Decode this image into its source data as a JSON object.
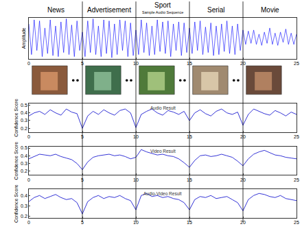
{
  "chart_data": [
    {
      "type": "line",
      "ylabel": "Amplitude",
      "annotations": [
        "News",
        "Advertisement",
        "Sport",
        "Serial",
        "Movie"
      ],
      "subtitle": "Sample Audio Sequence",
      "boundaries": [
        5,
        10,
        15,
        20
      ],
      "color": "#0000ff",
      "grid": false,
      "tick_labels": "x",
      "xlim": [
        0,
        25
      ],
      "xticks": [
        0,
        5,
        10,
        15,
        20,
        25
      ],
      "ylim": [
        -1,
        1
      ],
      "x": [
        0,
        0.25,
        0.5,
        0.75,
        1,
        1.25,
        1.5,
        1.75,
        2,
        2.25,
        2.5,
        2.75,
        3,
        3.25,
        3.5,
        3.75,
        4,
        4.25,
        4.5,
        4.75,
        5,
        5.25,
        5.5,
        5.75,
        6,
        6.25,
        6.5,
        6.75,
        7,
        7.25,
        7.5,
        7.75,
        8,
        8.25,
        8.5,
        8.75,
        9,
        9.25,
        9.5,
        9.75,
        10,
        10.25,
        10.5,
        10.75,
        11,
        11.25,
        11.5,
        11.75,
        12,
        12.25,
        12.5,
        12.75,
        13,
        13.25,
        13.5,
        13.75,
        14,
        14.25,
        14.5,
        14.75,
        15,
        15.25,
        15.5,
        15.75,
        16,
        16.25,
        16.5,
        16.75,
        17,
        17.25,
        17.5,
        17.75,
        18,
        18.25,
        18.5,
        18.75,
        19,
        19.25,
        19.5,
        19.75,
        20,
        20.25,
        20.5,
        20.75,
        21,
        21.25,
        21.5,
        21.75,
        22,
        22.25,
        22.5,
        22.75,
        23,
        23.25,
        23.5,
        23.75,
        24,
        24.25,
        24.5,
        24.75,
        25
      ],
      "values": [
        0.7,
        -0.8,
        0.9,
        -0.6,
        0.85,
        -0.9,
        0.5,
        -0.75,
        0.9,
        -0.85,
        0.6,
        -0.9,
        0.8,
        -0.7,
        0.95,
        -0.8,
        0.65,
        -0.9,
        0.85,
        -0.6,
        0.3,
        -0.9,
        0.85,
        -0.7,
        0.95,
        -0.8,
        0.6,
        -0.9,
        0.9,
        -0.75,
        0.85,
        -0.95,
        0.7,
        -0.8,
        0.9,
        -0.6,
        0.85,
        -0.9,
        0.75,
        -0.85,
        0.4,
        -0.8,
        0.9,
        -0.7,
        0.75,
        -0.85,
        0.6,
        -0.8,
        0.9,
        -0.65,
        0.8,
        -0.75,
        0.85,
        -0.9,
        0.7,
        -0.6,
        0.8,
        -0.85,
        0.75,
        -0.7,
        0.5,
        -0.75,
        0.8,
        -0.6,
        0.85,
        -0.8,
        0.55,
        -0.7,
        0.75,
        -0.85,
        0.6,
        -0.8,
        0.7,
        -0.65,
        0.85,
        -0.75,
        0.6,
        -0.8,
        0.7,
        -0.6,
        0.4,
        -0.3,
        0.35,
        -0.25,
        0.4,
        -0.3,
        0.2,
        -0.35,
        0.3,
        -0.25,
        0.5,
        -0.3,
        0.25,
        -0.35,
        0.3,
        -0.2,
        0.45,
        -0.3,
        0.25,
        -0.3,
        0.2
      ]
    },
    {
      "type": "line",
      "title": "Audio Result",
      "ylabel": "Confidence Score",
      "color": "#0000cc",
      "grid": false,
      "xlim": [
        0,
        25
      ],
      "xticks": [
        0,
        5,
        10,
        15,
        20,
        25
      ],
      "ylim": [
        0.15,
        0.52
      ],
      "yticks": [
        0.2,
        0.3,
        0.4,
        0.5
      ],
      "x": [
        0,
        0.5,
        1,
        1.5,
        2,
        2.5,
        3,
        3.5,
        4,
        4.5,
        5,
        5.5,
        6,
        6.5,
        7,
        7.5,
        8,
        8.5,
        9,
        9.5,
        10,
        10.5,
        11,
        11.5,
        12,
        12.5,
        13,
        13.5,
        14,
        14.5,
        15,
        15.5,
        16,
        16.5,
        17,
        17.5,
        18,
        18.5,
        19,
        19.5,
        20,
        20.5,
        21,
        21.5,
        22,
        22.5,
        23,
        23.5,
        24,
        24.5,
        25
      ],
      "values": [
        0.36,
        0.4,
        0.42,
        0.38,
        0.44,
        0.4,
        0.37,
        0.45,
        0.41,
        0.39,
        0.2,
        0.36,
        0.42,
        0.38,
        0.44,
        0.4,
        0.37,
        0.43,
        0.45,
        0.4,
        0.21,
        0.38,
        0.42,
        0.45,
        0.4,
        0.37,
        0.43,
        0.41,
        0.38,
        0.42,
        0.3,
        0.4,
        0.44,
        0.39,
        0.36,
        0.42,
        0.45,
        0.4,
        0.38,
        0.41,
        0.24,
        0.38,
        0.45,
        0.42,
        0.39,
        0.37,
        0.43,
        0.4,
        0.36,
        0.41,
        0.38
      ]
    },
    {
      "type": "line",
      "title": "Video Result",
      "ylabel": "Confidence Score",
      "color": "#0000cc",
      "grid": false,
      "xlim": [
        0,
        25
      ],
      "xticks": [
        0,
        5,
        10,
        15,
        20,
        25
      ],
      "ylim": [
        0.15,
        0.52
      ],
      "yticks": [
        0.2,
        0.3,
        0.4,
        0.5
      ],
      "x": [
        0,
        0.5,
        1,
        1.5,
        2,
        2.5,
        3,
        3.5,
        4,
        4.5,
        5,
        5.5,
        6,
        6.5,
        7,
        7.5,
        8,
        8.5,
        9,
        9.5,
        10,
        10.5,
        11,
        11.5,
        12,
        12.5,
        13,
        13.5,
        14,
        14.5,
        15,
        15.5,
        16,
        16.5,
        17,
        17.5,
        18,
        18.5,
        19,
        19.5,
        20,
        20.5,
        21,
        21.5,
        22,
        22.5,
        23,
        23.5,
        24,
        24.5,
        25
      ],
      "values": [
        0.36,
        0.39,
        0.42,
        0.41,
        0.4,
        0.42,
        0.39,
        0.37,
        0.35,
        0.3,
        0.22,
        0.32,
        0.38,
        0.4,
        0.41,
        0.42,
        0.4,
        0.41,
        0.39,
        0.36,
        0.38,
        0.48,
        0.45,
        0.43,
        0.41,
        0.42,
        0.4,
        0.39,
        0.36,
        0.31,
        0.25,
        0.34,
        0.4,
        0.41,
        0.39,
        0.4,
        0.42,
        0.4,
        0.38,
        0.33,
        0.27,
        0.36,
        0.42,
        0.45,
        0.47,
        0.44,
        0.41,
        0.4,
        0.38,
        0.37,
        0.36
      ]
    },
    {
      "type": "line",
      "title": "Audio-Video Result",
      "ylabel": "Confidence Score",
      "color": "#0000cc",
      "grid": false,
      "xlim": [
        0,
        25
      ],
      "xticks": [
        0,
        5,
        10,
        15,
        20,
        25
      ],
      "ylim": [
        0.18,
        0.46
      ],
      "yticks": [
        0.2,
        0.3,
        0.4
      ],
      "x": [
        0,
        0.5,
        1,
        1.5,
        2,
        2.5,
        3,
        3.5,
        4,
        4.5,
        5,
        5.5,
        6,
        6.5,
        7,
        7.5,
        8,
        8.5,
        9,
        9.5,
        10,
        10.5,
        11,
        11.5,
        12,
        12.5,
        13,
        13.5,
        14,
        14.5,
        15,
        15.5,
        16,
        16.5,
        17,
        17.5,
        18,
        18.5,
        19,
        19.5,
        20,
        20.5,
        21,
        21.5,
        22,
        22.5,
        23,
        23.5,
        24,
        24.5,
        25
      ],
      "values": [
        0.34,
        0.38,
        0.4,
        0.37,
        0.39,
        0.41,
        0.38,
        0.36,
        0.37,
        0.33,
        0.22,
        0.34,
        0.38,
        0.4,
        0.37,
        0.39,
        0.38,
        0.4,
        0.37,
        0.35,
        0.26,
        0.4,
        0.42,
        0.39,
        0.4,
        0.38,
        0.39,
        0.37,
        0.36,
        0.33,
        0.26,
        0.36,
        0.39,
        0.38,
        0.4,
        0.37,
        0.38,
        0.39,
        0.36,
        0.33,
        0.25,
        0.36,
        0.4,
        0.42,
        0.41,
        0.39,
        0.38,
        0.4,
        0.37,
        0.36,
        0.35
      ]
    }
  ]
}
